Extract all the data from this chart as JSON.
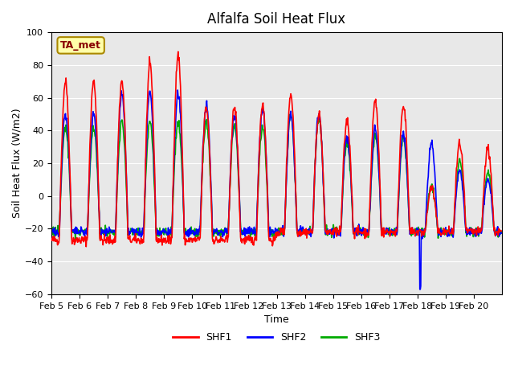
{
  "title": "Alfalfa Soil Heat Flux",
  "ylabel": "Soil Heat Flux (W/m2)",
  "xlabel": "Time",
  "ylim": [
    -60,
    100
  ],
  "x_tick_labels": [
    "Feb 5",
    "Feb 6",
    "Feb 7",
    "Feb 8",
    "Feb 9",
    "Feb 10",
    "Feb 11",
    "Feb 12",
    "Feb 13",
    "Feb 14",
    "Feb 15",
    "Feb 16",
    "Feb 17",
    "Feb 18",
    "Feb 19",
    "Feb 20"
  ],
  "colors": {
    "SHF1": "#ff0000",
    "SHF2": "#0000ff",
    "SHF3": "#00aa00"
  },
  "bg_color": "#e8e8e8",
  "legend_label": "TA_met",
  "legend_bg": "#ffffaa",
  "legend_border": "#aa8800",
  "yticks": [
    -60,
    -40,
    -20,
    0,
    20,
    40,
    60,
    80,
    100
  ]
}
